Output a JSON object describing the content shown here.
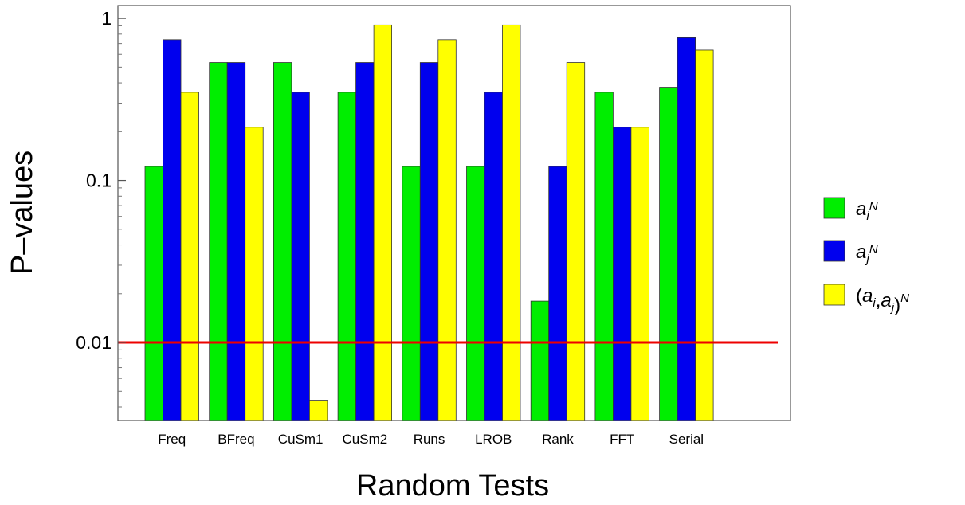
{
  "chart_data": {
    "type": "bar",
    "categories": [
      "Freq",
      "BFreq",
      "CuSm1",
      "CuSm2",
      "Runs",
      "LROB",
      "Rank",
      "FFT",
      "Serial"
    ],
    "series": [
      {
        "name": "a_i^N",
        "color": "#00ee00",
        "values": [
          0.122,
          0.534,
          0.534,
          0.35,
          0.122,
          0.122,
          0.018,
          0.35,
          0.376
        ]
      },
      {
        "name": "a_j^N",
        "color": "#0000ee",
        "values": [
          0.739,
          0.534,
          0.35,
          0.534,
          0.534,
          0.35,
          0.122,
          0.213,
          0.76
        ]
      },
      {
        "name": "(a_i,a_j)^N",
        "color": "#ffff00",
        "values": [
          0.35,
          0.213,
          0.0044,
          0.911,
          0.739,
          0.911,
          0.534,
          0.213,
          0.637
        ]
      }
    ],
    "xlabel": "Random Tests",
    "ylabel": "P–values",
    "yscale": "log",
    "ylim": [
      0.0033,
      1.2
    ],
    "yticks": [
      {
        "value": 1,
        "label": "1"
      },
      {
        "value": 0.1,
        "label": "0.1"
      },
      {
        "value": 0.01,
        "label": "0.01"
      }
    ],
    "threshold": {
      "value": 0.01,
      "color": "#ee0000"
    },
    "legend_position": "right",
    "grid": false
  }
}
